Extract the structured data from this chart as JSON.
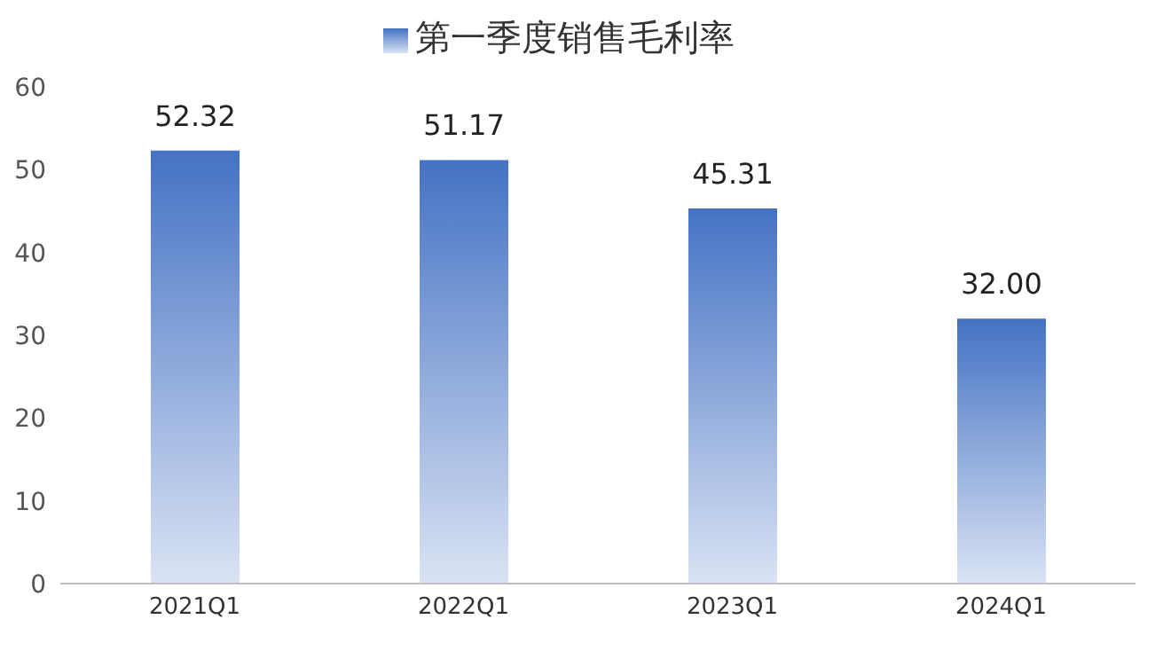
{
  "chart_data": {
    "type": "bar",
    "categories": [
      "2021Q1",
      "2022Q1",
      "2023Q1",
      "2024Q1"
    ],
    "series": [
      {
        "name": "第一季度销售毛利率",
        "color": "#4472c4",
        "values": [
          52.32,
          51.17,
          45.31,
          32.0
        ]
      }
    ],
    "value_labels": [
      "52.32",
      "51.17",
      "45.31",
      "32.00"
    ],
    "ylim": [
      0,
      60
    ],
    "yticks": [
      0,
      10,
      20,
      30,
      40,
      50,
      60
    ],
    "grid": false,
    "legend": "top"
  }
}
